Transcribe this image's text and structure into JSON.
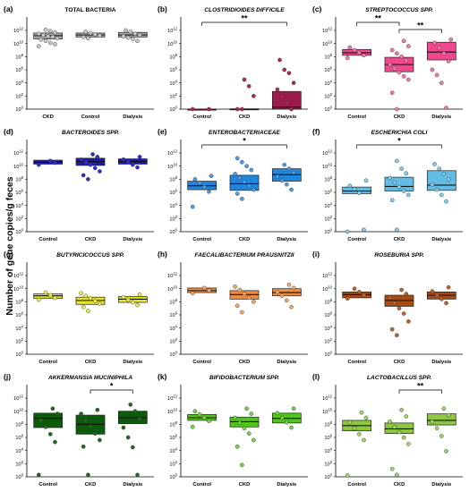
{
  "figure": {
    "ylabel": "Number of gene copies/g feces",
    "exponents": [
      0,
      2,
      4,
      6,
      8,
      10,
      12
    ]
  },
  "chart_data": [
    {
      "type": "box",
      "tag": "(a)",
      "title": "TOTAL BACTERIA",
      "italic": false,
      "color": "#a6a6a6",
      "dot": "#c8c8c8",
      "categories": [
        "CKD",
        "Control",
        "Dialysis"
      ],
      "ylim": [
        0,
        13.5
      ],
      "boxes": [
        {
          "q1": 10.7,
          "med": 11.2,
          "q3": 11.6
        },
        {
          "q1": 11.0,
          "med": 11.3,
          "q3": 11.6
        },
        {
          "q1": 11.0,
          "med": 11.3,
          "q3": 11.7
        }
      ],
      "points": [
        [
          9.6,
          9.9,
          10.1,
          10.4,
          10.6,
          10.8,
          11.0,
          11.1,
          11.3,
          11.5,
          11.7,
          11.9,
          12.1
        ],
        [
          10.8,
          11.0,
          11.2,
          11.4,
          11.6,
          11.8
        ],
        [
          10.4,
          10.7,
          10.9,
          11.1,
          11.3,
          11.5,
          11.8,
          12.0
        ]
      ],
      "sig": []
    },
    {
      "type": "box",
      "tag": "(b)",
      "title": "CLOSTRIDIOIDES DIFFICILE",
      "italic": true,
      "color": "#9c1a4c",
      "dot": "#b3245a",
      "categories": [
        "Control",
        "CKD",
        "Dialysis"
      ],
      "ylim": [
        0,
        13.5
      ],
      "boxes": [
        {
          "q1": 0,
          "med": 0,
          "q3": 0
        },
        {
          "q1": 0,
          "med": 0,
          "q3": 0.05
        },
        {
          "q1": 0,
          "med": 0.3,
          "q3": 2.7
        }
      ],
      "points": [
        [
          0,
          0
        ],
        [
          0,
          0,
          2,
          3.5,
          4.5
        ],
        [
          0,
          1,
          2,
          3,
          4,
          5.5,
          6,
          7.5
        ]
      ],
      "sig": [
        {
          "a": 0,
          "b": 2,
          "label": "**",
          "level": 0
        }
      ]
    },
    {
      "type": "box",
      "tag": "(c)",
      "title": "STREPTOCOCCUS SPP.",
      "italic": true,
      "color": "#f2468f",
      "dot": "#f57aaf",
      "categories": [
        "Control",
        "CKD",
        "Dialysis"
      ],
      "ylim": [
        0,
        13.5
      ],
      "boxes": [
        {
          "q1": 8.2,
          "med": 8.6,
          "q3": 9.1
        },
        {
          "q1": 5.7,
          "med": 6.8,
          "q3": 7.9
        },
        {
          "q1": 7.5,
          "med": 8.7,
          "q3": 10.2
        }
      ],
      "points": [
        [
          7.8,
          8.2,
          8.6,
          9.0,
          9.4
        ],
        [
          0,
          2.5,
          4.5,
          5.0,
          5.6,
          6.2,
          6.8,
          7.4,
          8.0,
          8.5,
          9.0,
          9.6,
          10.4
        ],
        [
          0.2,
          4.0,
          5.2,
          6.0,
          7.3,
          8.5,
          9.3,
          10.1,
          10.6
        ]
      ],
      "sig": [
        {
          "a": 0,
          "b": 1,
          "label": "**",
          "level": 0
        },
        {
          "a": 1,
          "b": 2,
          "label": "**",
          "level": 1
        }
      ]
    },
    {
      "type": "box",
      "tag": "(d)",
      "title": "BACTEROIDES SPP.",
      "italic": true,
      "color": "#1919b3",
      "dot": "#2e2ed1",
      "categories": [
        "Control",
        "CKD",
        "Dialysis"
      ],
      "ylim": [
        0,
        13.5
      ],
      "boxes": [
        {
          "q1": 10.3,
          "med": 10.6,
          "q3": 10.9
        },
        {
          "q1": 10.1,
          "med": 10.7,
          "q3": 11.2
        },
        {
          "q1": 10.3,
          "med": 10.7,
          "q3": 11.1
        }
      ],
      "points": [
        [
          10.2,
          10.5,
          10.8
        ],
        [
          8.0,
          8.6,
          9.2,
          9.7,
          10.2,
          10.6,
          11.0,
          11.4,
          11.8
        ],
        [
          9.8,
          10.2,
          10.6,
          11.0,
          11.4
        ]
      ],
      "sig": []
    },
    {
      "type": "box",
      "tag": "(e)",
      "title": "ENTEROBACTERIACEAE",
      "italic": true,
      "color": "#1f86e0",
      "dot": "#4aa0ea",
      "categories": [
        "Control",
        "CKD",
        "Dialysis"
      ],
      "ylim": [
        0,
        13.5
      ],
      "boxes": [
        {
          "q1": 6.4,
          "med": 7.0,
          "q3": 7.7
        },
        {
          "q1": 6.3,
          "med": 7.3,
          "q3": 8.6
        },
        {
          "q1": 7.7,
          "med": 8.7,
          "q3": 9.6
        }
      ],
      "points": [
        [
          3.8,
          6.1,
          6.8,
          7.4,
          8.0,
          8.5
        ],
        [
          5.0,
          5.8,
          6.4,
          7.0,
          7.6,
          8.2,
          8.8,
          9.4,
          10.0,
          10.6,
          11.2
        ],
        [
          6.4,
          7.2,
          7.8,
          8.4,
          9.0,
          9.6,
          10.2
        ]
      ],
      "sig": [
        {
          "a": 0,
          "b": 2,
          "label": "*",
          "level": 0
        }
      ]
    },
    {
      "type": "box",
      "tag": "(f)",
      "title": "ESCHERICHIA COLI",
      "italic": true,
      "color": "#60bde6",
      "dot": "#85cfee",
      "categories": [
        "Control",
        "CKD",
        "Dialysis"
      ],
      "ylim": [
        0,
        13.5
      ],
      "boxes": [
        {
          "q1": 5.8,
          "med": 6.2,
          "q3": 6.8
        },
        {
          "q1": 6.2,
          "med": 6.9,
          "q3": 8.3
        },
        {
          "q1": 6.3,
          "med": 7.1,
          "q3": 9.3
        }
      ],
      "points": [
        [
          0,
          0.3,
          5.9,
          6.5,
          7.0,
          7.8
        ],
        [
          0.3,
          4.8,
          5.6,
          6.2,
          6.8,
          7.5,
          8.2,
          8.9,
          9.6,
          10.8
        ],
        [
          4.6,
          5.6,
          6.4,
          7.2,
          8.0,
          8.8,
          9.6,
          10.3
        ]
      ],
      "sig": [
        {
          "a": 0,
          "b": 2,
          "label": "*",
          "level": 0
        }
      ]
    },
    {
      "type": "box",
      "tag": "(g)",
      "title": "BUTYRICICOCCUS SPP.",
      "italic": true,
      "color": "#e6e61a",
      "dot": "#eeee4e",
      "categories": [
        "Control",
        "CKD",
        "Dialysis"
      ],
      "ylim": [
        0,
        13.5
      ],
      "boxes": [
        {
          "q1": 8.5,
          "med": 8.9,
          "q3": 9.2
        },
        {
          "q1": 7.6,
          "med": 8.2,
          "q3": 8.7
        },
        {
          "q1": 7.9,
          "med": 8.4,
          "q3": 8.8
        }
      ],
      "points": [
        [
          8.3,
          8.6,
          9.0,
          9.4
        ],
        [
          6.6,
          7.2,
          7.7,
          8.1,
          8.5,
          8.9,
          9.3
        ],
        [
          7.5,
          7.9,
          8.3,
          8.7,
          9.1
        ]
      ],
      "sig": []
    },
    {
      "type": "box",
      "tag": "(h)",
      "title": "FAECALIBACTERIUM PRAUSNITZII",
      "italic": true,
      "color": "#f08c3c",
      "dot": "#f5a868",
      "categories": [
        "Control",
        "CKD",
        "Dialysis"
      ],
      "ylim": [
        0,
        13.5
      ],
      "boxes": [
        {
          "q1": 9.4,
          "med": 9.7,
          "q3": 10.1
        },
        {
          "q1": 8.4,
          "med": 9.1,
          "q3": 9.7
        },
        {
          "q1": 8.9,
          "med": 9.4,
          "q3": 10.0
        }
      ],
      "points": [
        [
          9.3,
          9.7,
          10.1
        ],
        [
          6.4,
          7.4,
          8.0,
          8.6,
          9.2,
          9.8,
          10.3
        ],
        [
          7.2,
          8.2,
          8.9,
          9.5,
          10.1,
          10.6
        ]
      ],
      "sig": []
    },
    {
      "type": "box",
      "tag": "(i)",
      "title": "ROSEBURIA SPP.",
      "italic": true,
      "color": "#a84a12",
      "dot": "#c0622a",
      "categories": [
        "Control",
        "CKD",
        "Dialysis"
      ],
      "ylim": [
        0,
        13.5
      ],
      "boxes": [
        {
          "q1": 8.6,
          "med": 9.1,
          "q3": 9.5
        },
        {
          "q1": 7.3,
          "med": 8.2,
          "q3": 9.0
        },
        {
          "q1": 8.4,
          "med": 9.0,
          "q3": 9.5
        }
      ],
      "points": [
        [
          8.5,
          9.0,
          9.5,
          10.0
        ],
        [
          2.9,
          3.8,
          5.0,
          6.2,
          7.0,
          7.8,
          8.6,
          9.2,
          9.8
        ],
        [
          7.8,
          8.4,
          9.0,
          9.6,
          10.2
        ]
      ],
      "sig": []
    },
    {
      "type": "box",
      "tag": "(j)",
      "title": "AKKERMANSIA MUCINIPHILA",
      "italic": true,
      "color": "#0d5a0d",
      "dot": "#1e6b1e",
      "categories": [
        "Control",
        "CKD",
        "Dialysis"
      ],
      "ylim": [
        0,
        13.5
      ],
      "boxes": [
        {
          "q1": 7.5,
          "med": 8.9,
          "q3": 9.7
        },
        {
          "q1": 6.5,
          "med": 8.0,
          "q3": 9.4
        },
        {
          "q1": 8.1,
          "med": 9.0,
          "q3": 10.0
        }
      ],
      "points": [
        [
          0.3,
          5.3,
          6.5,
          7.6,
          8.6,
          9.6,
          10.4
        ],
        [
          0.3,
          4.6,
          5.6,
          6.6,
          7.6,
          8.6,
          9.6,
          10.2
        ],
        [
          0.3,
          4.5,
          6.0,
          7.5,
          8.8,
          10.0,
          11.0
        ]
      ],
      "sig": [
        {
          "a": 1,
          "b": 2,
          "label": "*",
          "level": 0
        }
      ]
    },
    {
      "type": "box",
      "tag": "(k)",
      "title": "BIFIDOBACTERIUM SPP.",
      "italic": true,
      "color": "#52c41a",
      "dot": "#72d840",
      "categories": [
        "Control",
        "CKD",
        "Dialysis"
      ],
      "ylim": [
        0,
        13.5
      ],
      "boxes": [
        {
          "q1": 8.6,
          "med": 9.0,
          "q3": 9.5
        },
        {
          "q1": 7.6,
          "med": 8.4,
          "q3": 9.1
        },
        {
          "q1": 8.2,
          "med": 8.9,
          "q3": 9.7
        }
      ],
      "points": [
        [
          7.6,
          8.5,
          9.0,
          9.5,
          10.0
        ],
        [
          1.8,
          4.6,
          5.6,
          6.6,
          7.4,
          8.2,
          9.0,
          9.6,
          10.4
        ],
        [
          7.5,
          8.3,
          9.0,
          9.7,
          10.4
        ]
      ],
      "sig": []
    },
    {
      "type": "box",
      "tag": "(l)",
      "title": "LACTOBACILLUS SPP.",
      "italic": true,
      "color": "#8dc63f",
      "dot": "#a3d663",
      "categories": [
        "Control",
        "CKD",
        "Dialysis"
      ],
      "ylim": [
        0,
        13.5
      ],
      "boxes": [
        {
          "q1": 7.0,
          "med": 7.8,
          "q3": 8.6
        },
        {
          "q1": 6.6,
          "med": 7.3,
          "q3": 8.2
        },
        {
          "q1": 7.9,
          "med": 8.6,
          "q3": 9.6
        }
      ],
      "points": [
        [
          0.2,
          5.6,
          6.5,
          7.4,
          8.3,
          9.0,
          9.8
        ],
        [
          0.3,
          1.2,
          5.0,
          6.0,
          6.8,
          7.6,
          8.4,
          9.2,
          10.2
        ],
        [
          3.9,
          6.2,
          7.4,
          8.4,
          9.4,
          10.4
        ]
      ],
      "sig": [
        {
          "a": 1,
          "b": 2,
          "label": "**",
          "level": 0
        }
      ]
    }
  ]
}
